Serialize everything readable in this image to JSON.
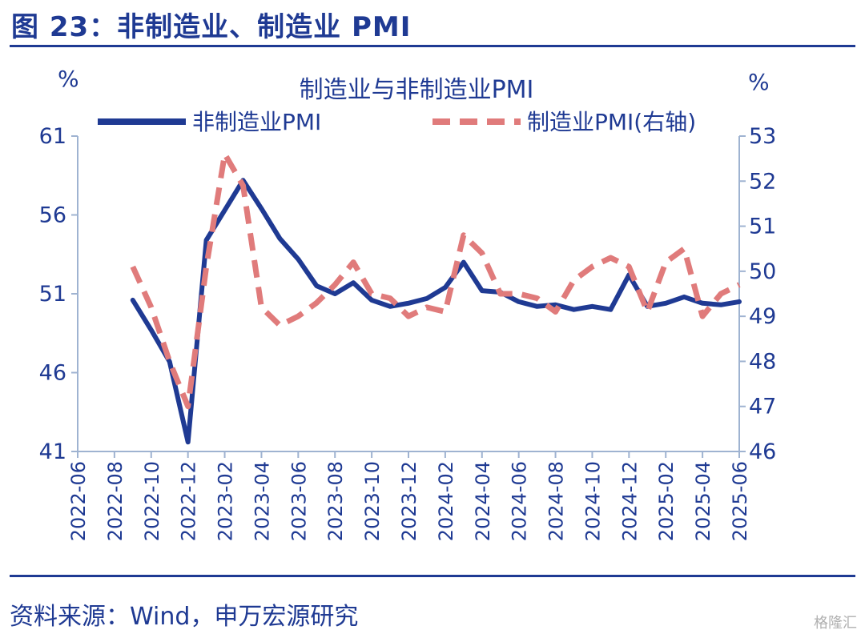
{
  "figure": {
    "title": "图 23：非制造业、制造业 PMI",
    "source": "资料来源：Wind，申万宏源研究",
    "watermark": "格隆汇"
  },
  "chart_data": {
    "type": "line",
    "title": "制造业与非制造业PMI",
    "left_unit": "%",
    "right_unit": "%",
    "x": [
      "2022-06",
      "2022-07",
      "2022-08",
      "2022-09",
      "2022-10",
      "2022-11",
      "2022-12",
      "2023-01",
      "2023-02",
      "2023-03",
      "2023-04",
      "2023-05",
      "2023-06",
      "2023-07",
      "2023-08",
      "2023-09",
      "2023-10",
      "2023-11",
      "2023-12",
      "2024-01",
      "2024-02",
      "2024-03",
      "2024-04",
      "2024-05",
      "2024-06",
      "2024-07",
      "2024-08",
      "2024-09",
      "2024-10",
      "2024-11",
      "2024-12",
      "2025-01",
      "2025-02",
      "2025-03",
      "2025-04",
      "2025-05",
      "2025-06"
    ],
    "x_tick_labels": [
      "2022-06",
      "2022-08",
      "2022-10",
      "2022-12",
      "2023-02",
      "2023-04",
      "2023-06",
      "2023-08",
      "2023-10",
      "2023-12",
      "2024-02",
      "2024-04",
      "2024-06",
      "2024-08",
      "2024-10",
      "2024-12",
      "2025-02",
      "2025-04",
      "2025-06"
    ],
    "y_left": {
      "min": 41,
      "max": 61,
      "ticks": [
        41,
        46,
        51,
        56,
        61
      ]
    },
    "y_right": {
      "min": 46,
      "max": 53,
      "ticks": [
        46,
        47,
        48,
        49,
        50,
        51,
        52,
        53
      ]
    },
    "series": [
      {
        "name": "非制造业PMI",
        "axis": "left",
        "color": "#1f3a93",
        "style": "solid",
        "values": [
          null,
          null,
          null,
          50.6,
          48.7,
          46.7,
          41.6,
          54.4,
          56.3,
          58.2,
          56.4,
          54.5,
          53.2,
          51.5,
          51.0,
          51.7,
          50.6,
          50.2,
          50.4,
          50.7,
          51.4,
          53.0,
          51.2,
          51.1,
          50.5,
          50.2,
          50.3,
          50.0,
          50.2,
          50.0,
          52.2,
          50.2,
          50.4,
          50.8,
          50.4,
          50.3,
          50.5
        ]
      },
      {
        "name": "制造业PMI(右轴)",
        "axis": "right",
        "color": "#e07b7b",
        "style": "dashed",
        "values": [
          null,
          null,
          null,
          50.1,
          49.2,
          48.0,
          47.0,
          50.1,
          52.6,
          51.9,
          49.2,
          48.8,
          49.0,
          49.3,
          49.7,
          50.2,
          49.5,
          49.4,
          49.0,
          49.2,
          49.1,
          50.8,
          50.4,
          49.5,
          49.5,
          49.4,
          49.1,
          49.8,
          50.1,
          50.3,
          50.1,
          49.1,
          50.2,
          50.5,
          49.0,
          49.5,
          49.7
        ]
      }
    ],
    "legend_position": "top",
    "grid": false
  }
}
